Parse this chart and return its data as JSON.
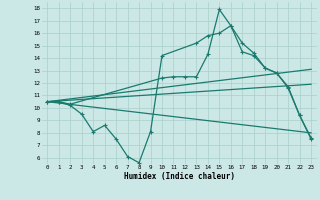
{
  "background_color": "#cce8e6",
  "grid_color": "#aacfcc",
  "line_color": "#1a7a6e",
  "xlabel": "Humidex (Indice chaleur)",
  "xlim": [
    -0.5,
    23.5
  ],
  "ylim": [
    5.5,
    18.5
  ],
  "yticks": [
    6,
    7,
    8,
    9,
    10,
    11,
    12,
    13,
    14,
    15,
    16,
    17,
    18
  ],
  "xticks": [
    0,
    1,
    2,
    3,
    4,
    5,
    6,
    7,
    8,
    9,
    10,
    11,
    12,
    13,
    14,
    15,
    16,
    17,
    18,
    19,
    20,
    21,
    22,
    23
  ],
  "line1_x": [
    0,
    1,
    2,
    3,
    4,
    5,
    6,
    7,
    8,
    9,
    10,
    13,
    14,
    15,
    16,
    17,
    18,
    19,
    20,
    21,
    22,
    23
  ],
  "line1_y": [
    10.5,
    10.5,
    10.2,
    9.5,
    8.1,
    8.6,
    7.5,
    6.1,
    5.6,
    8.1,
    14.2,
    15.2,
    15.8,
    16.0,
    16.6,
    15.2,
    14.4,
    13.2,
    12.8,
    11.6,
    9.4,
    7.6
  ],
  "line2_x": [
    0,
    1,
    2,
    10,
    11,
    12,
    13,
    14,
    15,
    16,
    17,
    18,
    19,
    20,
    21,
    22,
    23
  ],
  "line2_y": [
    10.5,
    10.5,
    10.3,
    12.4,
    12.5,
    12.5,
    12.5,
    14.3,
    17.9,
    16.6,
    14.5,
    14.2,
    13.2,
    12.8,
    11.7,
    9.4,
    7.5
  ],
  "line3_x": [
    0,
    23
  ],
  "line3_y": [
    10.5,
    13.1
  ],
  "line4_x": [
    0,
    23
  ],
  "line4_y": [
    10.5,
    11.9
  ],
  "line5_x": [
    0,
    23
  ],
  "line5_y": [
    10.5,
    8.0
  ]
}
